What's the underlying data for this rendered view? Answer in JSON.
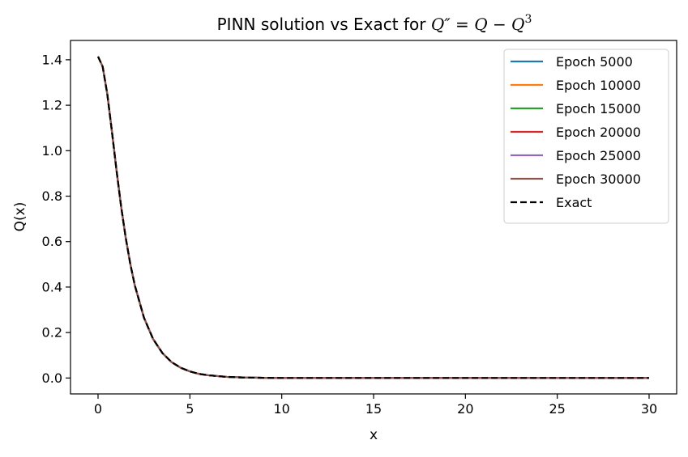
{
  "chart_data": {
    "type": "line",
    "title": "PINN solution vs Exact for Q″ = Q − Q³",
    "title_parts": {
      "prefix": "PINN solution vs Exact for ",
      "lhs": "Q″",
      "eq": " = ",
      "rhs_a": "Q − Q",
      "exponent": "3"
    },
    "xlabel": "x",
    "ylabel": "Q(x)",
    "xlim": [
      -1.5,
      31.5
    ],
    "ylim": [
      -0.07,
      1.485
    ],
    "xticks": [
      0,
      5,
      10,
      15,
      20,
      25,
      30
    ],
    "xtick_labels": [
      "0",
      "5",
      "10",
      "15",
      "20",
      "25",
      "30"
    ],
    "yticks": [
      0.0,
      0.2,
      0.4,
      0.6,
      0.8,
      1.0,
      1.2,
      1.4
    ],
    "ytick_labels": [
      "0.0",
      "0.2",
      "0.4",
      "0.6",
      "0.8",
      "1.0",
      "1.2",
      "1.4"
    ],
    "grid": false,
    "legend_position": "upper right",
    "x": [
      0,
      0.25,
      0.5,
      0.75,
      1,
      1.25,
      1.5,
      1.75,
      2,
      2.5,
      3,
      3.5,
      4,
      4.5,
      5,
      5.5,
      6,
      7,
      8,
      9,
      10,
      12,
      15,
      20,
      25,
      30
    ],
    "series": [
      {
        "name": "Epoch 5000",
        "color": "#1f77b4",
        "style": "solid",
        "y": [
          1.414,
          1.37,
          1.251,
          1.088,
          0.917,
          0.758,
          0.62,
          0.504,
          0.408,
          0.265,
          0.171,
          0.11,
          0.07,
          0.045,
          0.029,
          0.018,
          0.012,
          0.005,
          0.002,
          0.001,
          0.0,
          0.0,
          0.0,
          0.0,
          0.0,
          0.0
        ]
      },
      {
        "name": "Epoch 10000",
        "color": "#ff7f0e",
        "style": "solid",
        "y": [
          1.414,
          1.37,
          1.251,
          1.088,
          0.917,
          0.758,
          0.62,
          0.504,
          0.408,
          0.265,
          0.171,
          0.11,
          0.07,
          0.045,
          0.029,
          0.018,
          0.012,
          0.005,
          0.002,
          0.001,
          0.0,
          0.0,
          0.0,
          0.0,
          0.0,
          0.0
        ]
      },
      {
        "name": "Epoch 15000",
        "color": "#2ca02c",
        "style": "solid",
        "y": [
          1.414,
          1.37,
          1.251,
          1.088,
          0.917,
          0.758,
          0.62,
          0.504,
          0.408,
          0.265,
          0.171,
          0.11,
          0.07,
          0.045,
          0.029,
          0.018,
          0.012,
          0.005,
          0.002,
          0.001,
          0.0,
          0.0,
          0.0,
          0.0,
          0.0,
          0.0
        ]
      },
      {
        "name": "Epoch 20000",
        "color": "#d62728",
        "style": "solid",
        "y": [
          1.414,
          1.37,
          1.251,
          1.088,
          0.917,
          0.758,
          0.62,
          0.504,
          0.408,
          0.265,
          0.171,
          0.11,
          0.07,
          0.045,
          0.029,
          0.018,
          0.012,
          0.005,
          0.002,
          0.001,
          0.0,
          0.0,
          0.0,
          0.0,
          0.0,
          0.0
        ]
      },
      {
        "name": "Epoch 25000",
        "color": "#9467bd",
        "style": "solid",
        "y": [
          1.414,
          1.37,
          1.251,
          1.088,
          0.917,
          0.758,
          0.62,
          0.504,
          0.408,
          0.265,
          0.171,
          0.11,
          0.07,
          0.045,
          0.029,
          0.018,
          0.012,
          0.005,
          0.002,
          0.001,
          0.0,
          0.0,
          0.0,
          0.0,
          0.0,
          0.0
        ]
      },
      {
        "name": "Epoch 30000",
        "color": "#8c564b",
        "style": "solid",
        "y": [
          1.414,
          1.37,
          1.251,
          1.088,
          0.917,
          0.758,
          0.62,
          0.504,
          0.408,
          0.265,
          0.171,
          0.11,
          0.07,
          0.045,
          0.029,
          0.018,
          0.012,
          0.005,
          0.002,
          0.001,
          0.0,
          0.0,
          0.0,
          0.0,
          0.0,
          0.0
        ]
      },
      {
        "name": "Exact",
        "color": "#000000",
        "style": "dashed",
        "y": [
          1.414,
          1.37,
          1.251,
          1.088,
          0.917,
          0.758,
          0.62,
          0.504,
          0.408,
          0.265,
          0.171,
          0.11,
          0.07,
          0.045,
          0.029,
          0.018,
          0.012,
          0.005,
          0.002,
          0.001,
          0.0,
          0.0,
          0.0,
          0.0,
          0.0,
          0.0
        ]
      }
    ]
  }
}
